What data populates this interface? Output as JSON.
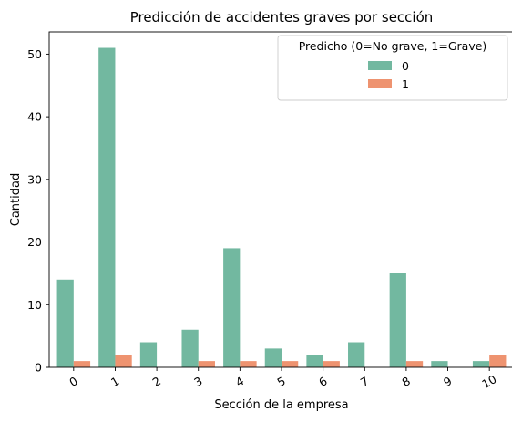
{
  "chart_data": {
    "type": "bar",
    "title": "Predicción de accidentes graves por sección",
    "xlabel": "Sección de la empresa",
    "ylabel": "Cantidad",
    "categories": [
      "0",
      "1",
      "2",
      "3",
      "4",
      "5",
      "6",
      "7",
      "8",
      "9",
      "10"
    ],
    "series": [
      {
        "name": "0",
        "color": "#72b8a0",
        "values": [
          14,
          51,
          4,
          6,
          19,
          3,
          2,
          4,
          15,
          1,
          1
        ]
      },
      {
        "name": "1",
        "color": "#ee9370",
        "values": [
          1,
          2,
          0,
          1,
          1,
          1,
          1,
          0,
          1,
          0,
          2
        ]
      }
    ],
    "yticks": [
      0,
      10,
      20,
      30,
      40,
      50
    ],
    "ylim": [
      0,
      53.55
    ],
    "grid": false,
    "legend": {
      "title": "Predicho (0=No grave, 1=Grave)",
      "position": "top-right"
    }
  }
}
